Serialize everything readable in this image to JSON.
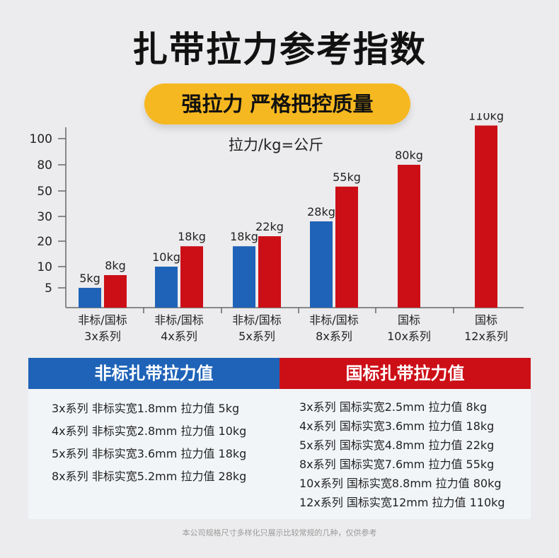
{
  "title": "扎带拉力参考指数",
  "badge": "强拉力 严格把控质量",
  "colors": {
    "blue": "#1f63b8",
    "red": "#cc0f17",
    "badge": "#f6b820"
  },
  "chart_data": {
    "type": "bar",
    "title": "拉力/kg=公斤",
    "y_ticks": [
      "5",
      "10",
      "20",
      "30",
      "50",
      "80",
      "100"
    ],
    "y_scale": "ordinal ticks (non-linear): 5,10,20,30,50,80,100",
    "categories": [
      {
        "line1": "非标/国标",
        "line2": "3x系列"
      },
      {
        "line1": "非标/国标",
        "line2": "4x系列"
      },
      {
        "line1": "非标/国标",
        "line2": "5x系列"
      },
      {
        "line1": "非标/国标",
        "line2": "8x系列"
      },
      {
        "line1": "国标",
        "line2": "10x系列"
      },
      {
        "line1": "国标",
        "line2": "12x系列"
      }
    ],
    "series": [
      {
        "name": "非标",
        "color": "#1f63b8",
        "values": [
          5,
          10,
          18,
          28,
          null,
          null
        ],
        "labels": [
          "5kg",
          "10kg",
          "18kg",
          "28kg",
          "",
          ""
        ]
      },
      {
        "name": "国标",
        "color": "#cc0f17",
        "values": [
          8,
          18,
          22,
          55,
          80,
          110
        ],
        "labels": [
          "8kg",
          "18kg",
          "22kg",
          "55kg",
          "80kg",
          "110kg"
        ]
      }
    ],
    "grid": false,
    "legend": "none"
  },
  "table": {
    "left_header": "非标扎带拉力值",
    "right_header": "国标扎带拉力值",
    "left_rows": [
      "3x系列  非标实宽1.8mm 拉力值 5kg",
      "4x系列  非标实宽2.8mm 拉力值 10kg",
      "5x系列  非标实宽3.6mm 拉力值 18kg",
      "8x系列  非标实宽5.2mm 拉力值 28kg"
    ],
    "right_rows": [
      "3x系列  国标实宽2.5mm 拉力值 8kg",
      "4x系列  国标实宽3.6mm 拉力值 18kg",
      "5x系列  国标实宽4.8mm 拉力值 22kg",
      "8x系列  国标实宽7.6mm 拉力值 55kg",
      "10x系列  国标实宽8.8mm 拉力值 80kg",
      "12x系列  国标实宽12mm 拉力值 110kg"
    ]
  },
  "footer": "本公司规格尺寸多样化只展示比较常规的几种，仅供参考"
}
